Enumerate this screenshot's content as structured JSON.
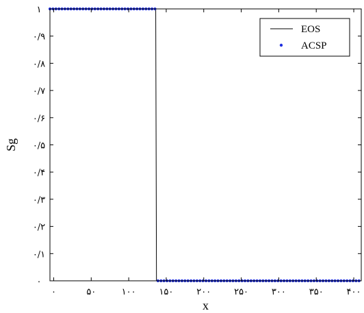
{
  "chart_data": {
    "type": "line",
    "xlabel": "x",
    "ylabel": "Sg",
    "xlim": [
      -5,
      410
    ],
    "ylim": [
      0,
      1
    ],
    "grid": false,
    "legend_position": "top-right",
    "x_ticks": [
      {
        "value": 0,
        "label": "۰"
      },
      {
        "value": 50,
        "label": "۵۰"
      },
      {
        "value": 100,
        "label": "۱۰۰"
      },
      {
        "value": 150,
        "label": "۱۵۰"
      },
      {
        "value": 200,
        "label": "۲۰۰"
      },
      {
        "value": 250,
        "label": "۲۵۰"
      },
      {
        "value": 300,
        "label": "۳۰۰"
      },
      {
        "value": 350,
        "label": "۳۵۰"
      },
      {
        "value": 400,
        "label": "۴۰۰"
      }
    ],
    "y_ticks": [
      {
        "value": 0,
        "label": "۰"
      },
      {
        "value": 0.1,
        "label": "۰/۱"
      },
      {
        "value": 0.2,
        "label": "۰/۲"
      },
      {
        "value": 0.3,
        "label": "۰/۳"
      },
      {
        "value": 0.4,
        "label": "۰/۴"
      },
      {
        "value": 0.5,
        "label": "۰/۵"
      },
      {
        "value": 0.6,
        "label": "۰/۶"
      },
      {
        "value": 0.7,
        "label": "۰/۷"
      },
      {
        "value": 0.8,
        "label": "۰/۸"
      },
      {
        "value": 0.9,
        "label": "۰/۹"
      },
      {
        "value": 1,
        "label": "۱"
      }
    ],
    "series": [
      {
        "name": "EOS",
        "style": "line",
        "color": "#000000",
        "x": [
          -5,
          136,
          137,
          410
        ],
        "y": [
          1,
          1,
          0,
          0
        ]
      },
      {
        "name": "ACSP",
        "style": "markers",
        "color": "#1f2fe0",
        "front_x": 136,
        "spacing": 4,
        "x_range": [
          -5,
          410
        ],
        "y_before_front": 1,
        "y_after_front": 0
      }
    ]
  }
}
